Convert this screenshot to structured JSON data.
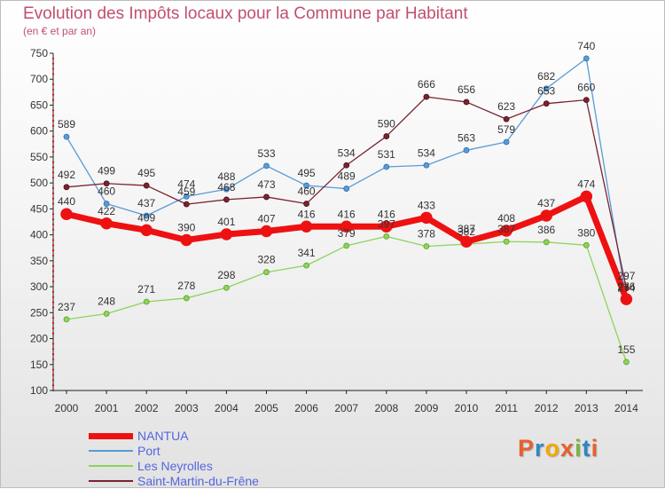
{
  "title": "Evolution des Impôts locaux pour la Commune par Habitant",
  "subtitle": "(en € et par an)",
  "logo": {
    "text": "Proxiti",
    "letters": [
      "P",
      "r",
      "o",
      "x",
      "i",
      "t",
      "i"
    ],
    "colors": [
      "#e8602c",
      "#2e86c1",
      "#f2a900",
      "#e8602c",
      "#7cb342",
      "#2e86c1",
      "#e8602c"
    ]
  },
  "chart_data": {
    "type": "line",
    "title": "Evolution des Impôts locaux pour la Commune par Habitant",
    "subtitle": "(en € et par an)",
    "categories": [
      "2000",
      "2001",
      "2002",
      "2003",
      "2004",
      "2005",
      "2006",
      "2007",
      "2008",
      "2009",
      "2010",
      "2011",
      "2012",
      "2013",
      "2014"
    ],
    "ylim": [
      100,
      750
    ],
    "yticks": [
      100,
      150,
      200,
      250,
      300,
      350,
      400,
      450,
      500,
      550,
      600,
      650,
      700,
      750
    ],
    "grid": false,
    "legend_position": "bottom-left",
    "series": [
      {
        "name": "NANTUA",
        "color": "#ee1111",
        "values": [
          440,
          422,
          409,
          390,
          401,
          407,
          416,
          416,
          416,
          433,
          387,
          408,
          437,
          474,
          276
        ]
      },
      {
        "name": "Port",
        "color": "#5b9bd5",
        "values": [
          589,
          460,
          437,
          474,
          488,
          533,
          495,
          489,
          531,
          534,
          563,
          579,
          682,
          740,
          274
        ]
      },
      {
        "name": "Les Neyrolles",
        "color": "#8ed35b",
        "values": [
          237,
          248,
          271,
          278,
          298,
          328,
          341,
          379,
          397,
          378,
          382,
          387,
          386,
          380,
          155
        ]
      },
      {
        "name": "Saint-Martin-du-Frêne",
        "color": "#7b2330",
        "values": [
          492,
          499,
          495,
          459,
          468,
          473,
          460,
          534,
          590,
          666,
          656,
          623,
          653,
          660,
          297
        ]
      }
    ]
  }
}
